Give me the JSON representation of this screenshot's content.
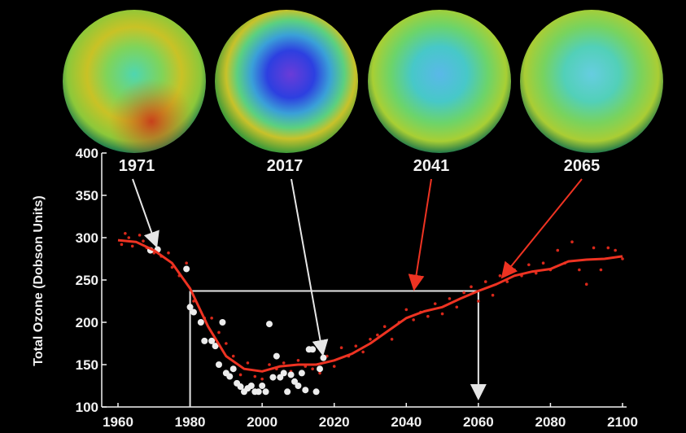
{
  "chart_data": {
    "type": "line",
    "y_label": "Total Ozone (Dobson Units)",
    "xlim": [
      1960,
      2100
    ],
    "xticks": [
      1960,
      1980,
      2000,
      2020,
      2040,
      2060,
      2080,
      2100
    ],
    "ylim": [
      100,
      400
    ],
    "yticks": [
      100,
      150,
      200,
      250,
      300,
      350,
      400
    ],
    "series": [
      {
        "type": "scatter",
        "color": "#d8281a",
        "x": [
          1961,
          1962,
          1963,
          1964,
          1966,
          1967,
          1968,
          1970,
          1972,
          1974,
          1975,
          1977,
          1979,
          1981,
          1984,
          1986,
          1988,
          1990,
          1992,
          1994,
          1996,
          1998,
          2000,
          2002,
          2004,
          2006,
          2008,
          2010,
          2012,
          2014,
          2016,
          2018,
          2020,
          2022,
          2024,
          2026,
          2028,
          2030,
          2032,
          2034,
          2036,
          2038,
          2040,
          2042,
          2044,
          2046,
          2048,
          2050,
          2052,
          2054,
          2056,
          2058,
          2060,
          2062,
          2064,
          2066,
          2068,
          2070,
          2072,
          2074,
          2076,
          2078,
          2080,
          2082,
          2084,
          2086,
          2088,
          2090,
          2092,
          2094,
          2096,
          2098,
          2100
        ],
        "values": [
          292,
          305,
          300,
          290,
          303,
          296,
          288,
          282,
          278,
          282,
          265,
          255,
          270,
          225,
          205,
          205,
          188,
          175,
          160,
          138,
          152,
          136,
          133,
          150,
          145,
          152,
          142,
          155,
          148,
          145,
          140,
          160,
          148,
          170,
          160,
          172,
          165,
          180,
          185,
          195,
          180,
          200,
          215,
          203,
          212,
          207,
          222,
          210,
          228,
          218,
          235,
          242,
          225,
          248,
          232,
          255,
          248,
          262,
          255,
          268,
          258,
          270,
          262,
          285,
          270,
          295,
          262,
          245,
          288,
          262,
          288,
          285,
          275
        ]
      },
      {
        "type": "scatter",
        "color": "#ececec",
        "x": [
          1969,
          1971,
          1979,
          1980,
          1981,
          1983,
          1984,
          1986,
          1987,
          1988,
          1989,
          1990,
          1991,
          1992,
          1993,
          1994,
          1995,
          1996,
          1997,
          1998,
          1999,
          2000,
          2001,
          2002,
          2003,
          2004,
          2005,
          2006,
          2007,
          2008,
          2009,
          2010,
          2011,
          2012,
          2013,
          2014,
          2015,
          2016,
          2017
        ],
        "values": [
          285,
          286,
          263,
          218,
          212,
          200,
          178,
          178,
          172,
          150,
          200,
          140,
          136,
          145,
          128,
          124,
          118,
          122,
          125,
          118,
          118,
          125,
          118,
          198,
          135,
          160,
          135,
          140,
          118,
          138,
          130,
          125,
          140,
          120,
          168,
          168,
          118,
          145,
          158
        ]
      },
      {
        "type": "line",
        "color": "#ee3322",
        "x": [
          1960,
          1965,
          1970,
          1975,
          1980,
          1985,
          1990,
          1995,
          2000,
          2005,
          2010,
          2015,
          2020,
          2025,
          2030,
          2035,
          2040,
          2045,
          2050,
          2055,
          2060,
          2065,
          2070,
          2075,
          2080,
          2085,
          2090,
          2095,
          2100
        ],
        "values": [
          297,
          295,
          285,
          270,
          240,
          195,
          160,
          145,
          142,
          148,
          150,
          150,
          155,
          163,
          175,
          190,
          205,
          213,
          218,
          228,
          237,
          245,
          255,
          260,
          263,
          272,
          274,
          275,
          278
        ]
      }
    ],
    "reference": {
      "y": 237,
      "x": [
        1980,
        2060
      ],
      "color": "#e6e6e6"
    },
    "annotations": [
      {
        "label": "1971",
        "x": 1971,
        "y": 286,
        "color": "#e6e6e6"
      },
      {
        "label": "2017",
        "x": 2017,
        "y": 158,
        "color": "#e6e6e6"
      },
      {
        "label": "2041",
        "x": 2042,
        "y": 235,
        "color": "#ee3322"
      },
      {
        "label": "2065",
        "x": 2066,
        "y": 250,
        "color": "#ee3322"
      }
    ]
  }
}
